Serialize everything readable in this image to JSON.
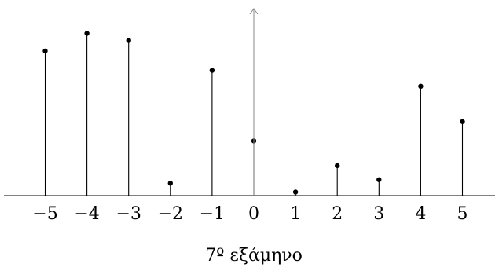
{
  "chart_data": {
    "type": "stem",
    "x": [
      -5,
      -4,
      -3,
      -2,
      -1,
      0,
      1,
      2,
      3,
      4,
      5
    ],
    "values": [
      0.82,
      0.92,
      0.88,
      0.07,
      0.71,
      0.31,
      0.02,
      0.17,
      0.09,
      0.62,
      0.42
    ],
    "x_tick_labels": [
      "−5",
      "−4",
      "−3",
      "−2",
      "−1",
      "0",
      "1",
      "2",
      "3",
      "4",
      "5"
    ],
    "ylim": [
      0,
      1.02
    ],
    "xlim": [
      -6,
      6
    ],
    "grid": false,
    "caption": "7º  εξάμηνο",
    "colors": {
      "stem": "#000000",
      "axis": "#000000",
      "y_axis": "#888888"
    }
  }
}
